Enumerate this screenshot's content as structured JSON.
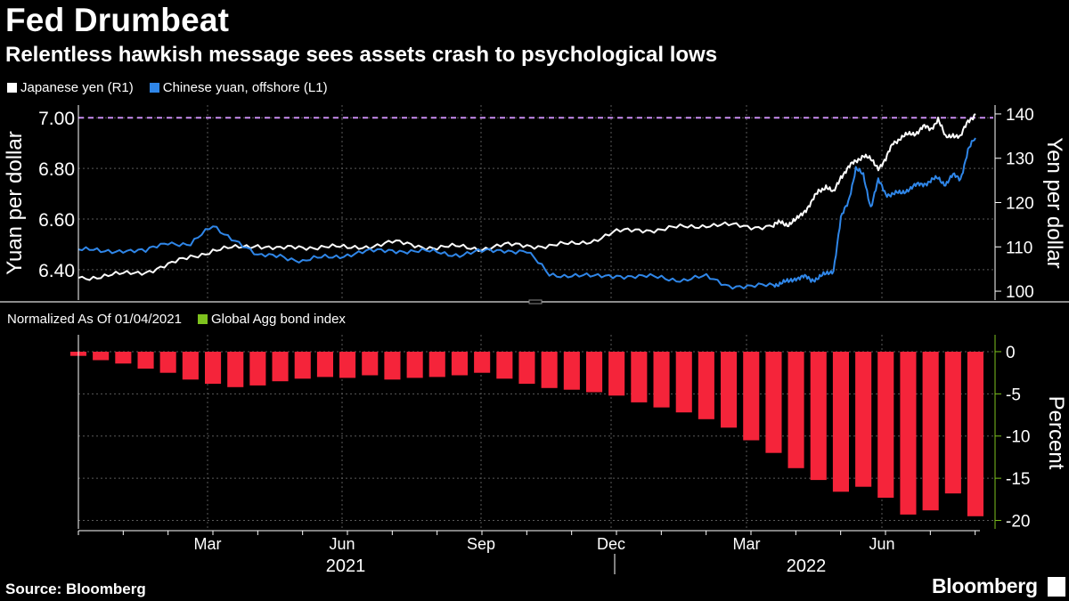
{
  "header": {
    "title": "Fed Drumbeat",
    "subtitle": "Relentless hawkish message sees assets crash to psychological lows"
  },
  "footer": {
    "source": "Source: Bloomberg",
    "brand": "Bloomberg"
  },
  "colors": {
    "background": "#000000",
    "yen": "#ffffff",
    "yuan": "#2f86e8",
    "bond_bars": "#f5243a",
    "bond_legend": "#7ec21e",
    "threshold": "#c88cf0",
    "grid": "#5a5a5a"
  },
  "chart_data": [
    {
      "type": "line",
      "legend": [
        "Japanese yen (R1)",
        "Chinese yuan, offshore (L1)"
      ],
      "ylabel_left": "Yuan per dollar",
      "ylabel_right": "Yen per dollar",
      "ylim_left": [
        6.28,
        7.05
      ],
      "ylim_right": [
        98,
        142
      ],
      "yticks_left": [
        "7.00",
        "6.80",
        "6.60",
        "6.40"
      ],
      "yticks_right": [
        "140",
        "130",
        "120",
        "110",
        "100"
      ],
      "threshold": {
        "value": 7.0,
        "axis": "left",
        "style": "dashed"
      },
      "x_labels": [
        "Mar",
        "Jun",
        "Sep",
        "Dec",
        "Mar",
        "Jun"
      ],
      "years": [
        "2021",
        "2022"
      ],
      "series": [
        {
          "name": "Japanese yen (R1)",
          "axis": "right",
          "x": [
            0,
            3,
            6,
            9,
            12,
            15,
            18,
            21,
            24,
            27,
            30,
            33,
            36,
            39,
            42,
            45,
            48,
            51,
            54,
            57,
            60,
            63,
            66,
            69,
            72,
            75,
            78,
            81,
            84,
            87,
            90,
            93,
            94,
            95,
            96,
            97,
            98,
            99,
            100,
            101,
            102,
            103,
            104,
            105,
            106,
            107,
            108,
            109,
            110,
            111,
            112,
            113,
            114,
            115,
            116,
            117,
            118,
            119,
            120
          ],
          "values": [
            103.0,
            103.4,
            103.8,
            104.5,
            105.8,
            107.8,
            109.2,
            109.7,
            110.5,
            109.5,
            109.9,
            110.2,
            109.6,
            110.3,
            111.0,
            110.4,
            109.8,
            110.0,
            109.7,
            110.3,
            110.4,
            110.2,
            110.6,
            111.6,
            113.3,
            114.0,
            113.8,
            114.5,
            115.0,
            114.8,
            114.6,
            114.8,
            115.5,
            115.2,
            115.9,
            118.0,
            119.8,
            122.5,
            123.8,
            122.0,
            126.0,
            127.8,
            129.3,
            130.8,
            129.5,
            128.0,
            129.6,
            133.5,
            134.7,
            135.2,
            135.8,
            137.0,
            136.5,
            139.0,
            134.5,
            135.5,
            134.6,
            138.5,
            140.0
          ]
        },
        {
          "name": "Chinese yuan, offshore (L1)",
          "axis": "left",
          "x": [
            0,
            3,
            6,
            9,
            12,
            15,
            18,
            21,
            24,
            27,
            30,
            33,
            36,
            39,
            42,
            45,
            48,
            51,
            54,
            57,
            60,
            63,
            66,
            69,
            72,
            75,
            78,
            81,
            84,
            87,
            90,
            93,
            94,
            95,
            96,
            97,
            98,
            99,
            100,
            101,
            102,
            103,
            104,
            105,
            106,
            107,
            108,
            109,
            110,
            111,
            112,
            113,
            114,
            115,
            116,
            117,
            118,
            119,
            120
          ],
          "values": [
            6.48,
            6.47,
            6.48,
            6.47,
            6.51,
            6.5,
            6.57,
            6.52,
            6.45,
            6.46,
            6.43,
            6.45,
            6.46,
            6.47,
            6.48,
            6.47,
            6.47,
            6.46,
            6.47,
            6.48,
            6.47,
            6.38,
            6.38,
            6.37,
            6.38,
            6.37,
            6.37,
            6.36,
            6.37,
            6.34,
            6.33,
            6.34,
            6.35,
            6.35,
            6.37,
            6.37,
            6.36,
            6.37,
            6.38,
            6.4,
            6.6,
            6.67,
            6.8,
            6.77,
            6.65,
            6.75,
            6.7,
            6.7,
            6.7,
            6.72,
            6.73,
            6.74,
            6.75,
            6.76,
            6.74,
            6.77,
            6.76,
            6.87,
            6.92
          ]
        }
      ]
    },
    {
      "type": "bar",
      "legend_prefix": "Normalized As Of 01/04/2021",
      "legend": [
        "Global Agg bond index"
      ],
      "ylabel": "Percent",
      "ylim": [
        -21,
        2
      ],
      "yticks": [
        "0",
        "-5",
        "-10",
        "-15",
        "-20"
      ],
      "x_labels": [
        "Mar",
        "Jun",
        "Sep",
        "Dec",
        "Mar",
        "Jun"
      ],
      "years": [
        "2021",
        "2022"
      ],
      "x": [
        0,
        3,
        6,
        9,
        12,
        15,
        18,
        21,
        24,
        27,
        30,
        33,
        36,
        39,
        42,
        45,
        48,
        51,
        54,
        57,
        60,
        63,
        66,
        69,
        72,
        75,
        78,
        81,
        84,
        87,
        90,
        93,
        96,
        99,
        102,
        105,
        108,
        111,
        114,
        117,
        120
      ],
      "values": [
        -0.5,
        -1.0,
        -1.4,
        -2.0,
        -2.5,
        -3.3,
        -3.8,
        -4.2,
        -4.0,
        -3.5,
        -3.2,
        -3.0,
        -3.1,
        -2.8,
        -3.3,
        -3.1,
        -3.0,
        -2.8,
        -2.5,
        -3.2,
        -3.8,
        -4.3,
        -4.5,
        -4.8,
        -5.2,
        -6.0,
        -6.6,
        -7.2,
        -8.0,
        -9.0,
        -10.5,
        -12.0,
        -13.8,
        -15.2,
        -16.6,
        -16.0,
        -17.3,
        -19.3,
        -18.8,
        -16.8,
        -19.5
      ]
    }
  ]
}
